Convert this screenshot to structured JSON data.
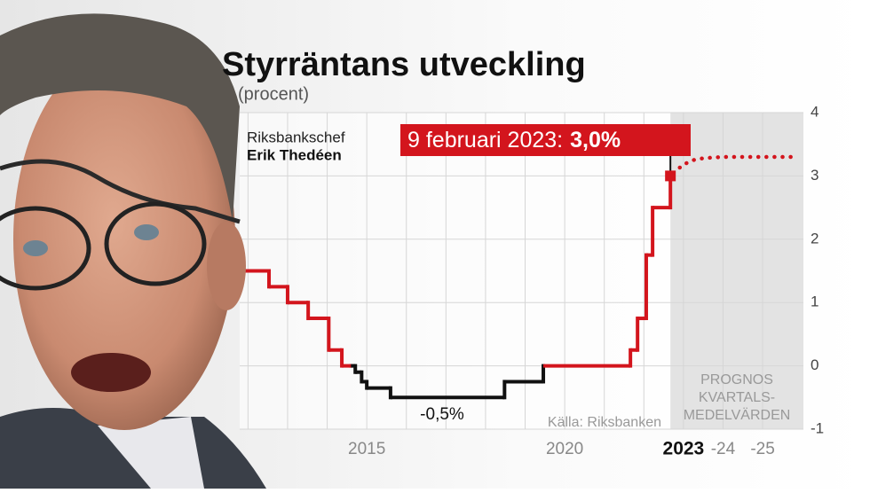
{
  "chart_data": {
    "type": "step",
    "title": "Styrräntans utveckling",
    "subtitle": "(procent)",
    "person": {
      "role": "Riksbankschef",
      "name": "Erik Thedéen"
    },
    "source": "Källa: Riksbanken",
    "forecast_label": [
      "PROGNOS",
      "KVARTALS-",
      "MEDELVÄRDEN"
    ],
    "forecast_region": [
      2022.67,
      2026.03
    ],
    "annotation": {
      "prefix": "9 februari 2023:",
      "value_label": "3,0%",
      "value": 3.0,
      "x": 2022.67
    },
    "min_annotation": {
      "label": "-0,5%",
      "value": -0.5
    },
    "xlim": [
      2011.79,
      2026.03
    ],
    "ylim": [
      -1,
      4
    ],
    "yticks": [
      -1,
      0,
      1,
      2,
      3,
      4
    ],
    "xgrid": [
      2012,
      2013,
      2014,
      2015,
      2016,
      2017,
      2018,
      2019,
      2020,
      2021,
      2022,
      2023,
      2024,
      2025
    ],
    "xticks": [
      2015,
      2020,
      {
        "value": 2023,
        "label": "2023"
      },
      {
        "value": 2024,
        "label": "-24"
      },
      {
        "value": 2025,
        "label": "-25"
      }
    ],
    "series": [
      {
        "color": "#d3151d",
        "x": [
          2011.91,
          2012.53,
          2013.0,
          2013.52,
          2014.04,
          2014.37
        ],
        "values": [
          1.5,
          1.25,
          1,
          0.75,
          0.25,
          0
        ]
      },
      {
        "color": "#111111",
        "x": [
          2014.6,
          2014.71,
          2014.87,
          2015.0,
          2015.6,
          2018.48
        ],
        "values": [
          0,
          -0.1,
          -0.25,
          -0.35,
          -0.5,
          -0.25
        ]
      },
      {
        "color": "#d3151d",
        "x": [
          2019.46,
          2021.66,
          2021.84,
          2022.06,
          2022.22
        ],
        "values": [
          0,
          0.25,
          0.75,
          1.75,
          2.5
        ]
      }
    ],
    "forecast": {
      "color": "#d3151d",
      "x": [
        2022.75,
        2023.0,
        2023.25,
        2023.5,
        2024.0,
        2024.5,
        2025.0,
        2025.81
      ],
      "values": [
        3.05,
        3.18,
        3.25,
        3.28,
        3.3,
        3.3,
        3.3,
        3.3
      ]
    }
  }
}
